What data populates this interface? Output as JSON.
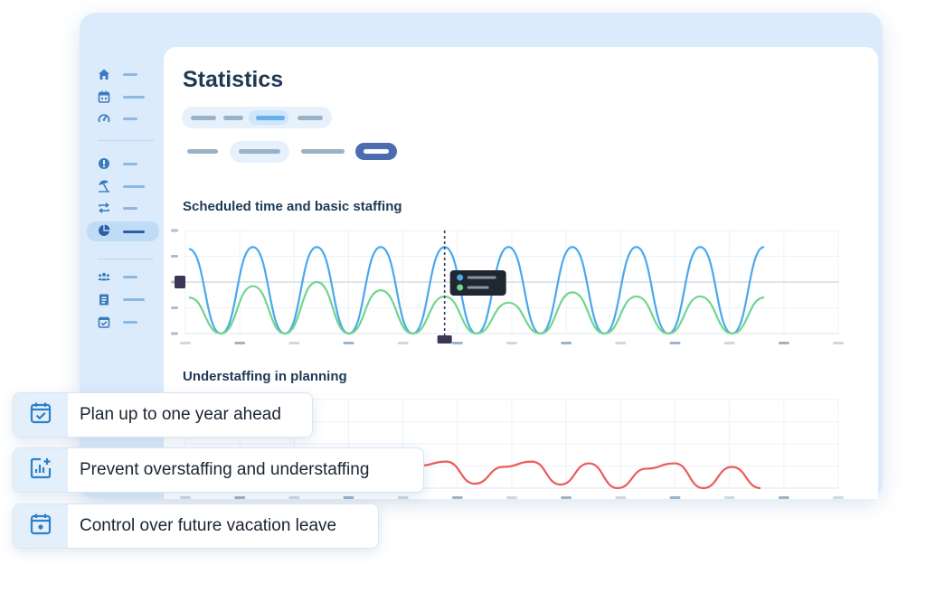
{
  "page": {
    "title": "Statistics"
  },
  "sidebar": {
    "items": [
      {
        "icon": "home-icon",
        "active": false
      },
      {
        "icon": "calendar-icon",
        "active": false
      },
      {
        "icon": "dashboard-gauge-icon",
        "active": false
      },
      {
        "icon": "alert-icon",
        "active": false
      },
      {
        "icon": "beach-umbrella-icon",
        "active": false
      },
      {
        "icon": "swap-icon",
        "active": false
      },
      {
        "icon": "pie-chart-icon",
        "active": true
      },
      {
        "icon": "team-icon",
        "active": false
      },
      {
        "icon": "clipboard-icon",
        "active": false
      },
      {
        "icon": "calendar-check-icon",
        "active": false
      }
    ]
  },
  "sections": {
    "staffing_title": "Scheduled time and basic staffing",
    "understaffing_title": "Understaffing in planning"
  },
  "features": [
    {
      "label": "Plan up to one year ahead",
      "icon": "calendar-check-icon"
    },
    {
      "label": "Prevent overstaffing and understaffing",
      "icon": "bar-chart-plus-icon"
    },
    {
      "label": "Control over future vacation leave",
      "icon": "calendar-day-icon"
    }
  ],
  "colors": {
    "accent": "#3f9ee8",
    "scheduled": "#4aa8ec",
    "staffing": "#6fd68e",
    "understaffing": "#ec5a5a",
    "marker": "#3b3556",
    "title": "#1e3a55"
  },
  "chart_data": [
    {
      "type": "line",
      "title": "Scheduled time and basic staffing",
      "series": [
        {
          "values": [
            0.82,
            0.0,
            0.84,
            0.0,
            0.84,
            0.0,
            0.84,
            0.0,
            0.84,
            0.0,
            0.84,
            0.0,
            0.84,
            0.0,
            0.84,
            0.0,
            0.84,
            0.0,
            0.84
          ]
        },
        {
          "values": [
            0.35,
            0.0,
            0.46,
            0.0,
            0.5,
            0.0,
            0.42,
            0.0,
            0.36,
            0.0,
            0.3,
            0.0,
            0.4,
            0.0,
            0.36,
            0.0,
            0.36,
            0.0,
            0.35
          ]
        }
      ],
      "cursor_index": 8,
      "ylim": [
        0,
        1
      ],
      "grid": true
    },
    {
      "type": "line",
      "title": "Understaffing in planning",
      "series": [
        {
          "values": [
            0.3,
            0.0,
            0.0,
            0.28,
            0.05,
            0.3,
            0.32,
            0.1,
            0.25,
            0.3,
            0.05,
            0.24,
            0.3,
            0.04,
            0.28,
            0.0,
            0.22,
            0.28,
            0.0,
            0.24,
            0.0
          ]
        }
      ],
      "ylim": [
        0,
        1
      ],
      "grid": true
    }
  ]
}
